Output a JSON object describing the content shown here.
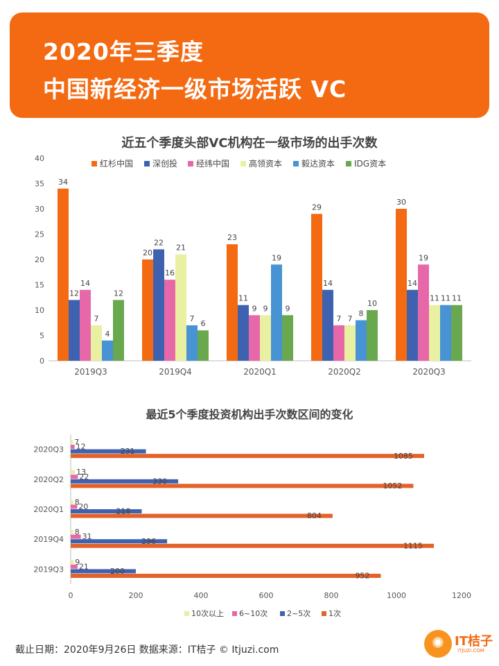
{
  "header": {
    "line1": "2020年三季度",
    "line2": "中国新经济一级市场活跃 VC"
  },
  "footer": {
    "text": "截止日期：2020年9月26日    数据来源：IT桔子 © Itjuzi.com"
  },
  "logo": {
    "text": "IT桔子",
    "sub": "ITJUZI.COM",
    "icon": "orange-slice-icon"
  },
  "chart_data": [
    {
      "type": "bar",
      "title": "近五个季度头部VC机构在一级市场的出手次数",
      "categories": [
        "2019Q3",
        "2019Q4",
        "2020Q1",
        "2020Q2",
        "2020Q3"
      ],
      "ylim": [
        0,
        40
      ],
      "yticks": [
        0,
        5,
        10,
        15,
        20,
        25,
        30,
        35,
        40
      ],
      "grid": false,
      "legend": "top",
      "series": [
        {
          "name": "红杉中国",
          "color": "#f36a12",
          "values": [
            34,
            20,
            23,
            29,
            30
          ]
        },
        {
          "name": "深创投",
          "color": "#3f62b0",
          "values": [
            12,
            22,
            11,
            14,
            14
          ]
        },
        {
          "name": "经纬中国",
          "color": "#e668a9",
          "values": [
            14,
            16,
            9,
            7,
            19
          ]
        },
        {
          "name": "高领资本",
          "color": "#eaf0a2",
          "values": [
            7,
            21,
            9,
            7,
            11
          ]
        },
        {
          "name": "毅达资本",
          "color": "#4793d3",
          "values": [
            4,
            7,
            19,
            8,
            11
          ]
        },
        {
          "name": "IDG资本",
          "color": "#6aa84f",
          "values": [
            12,
            6,
            9,
            10,
            11
          ]
        }
      ]
    },
    {
      "type": "bar",
      "orientation": "horizontal",
      "title": "最近5个季度投资机构出手次数区间的变化",
      "categories": [
        "2020Q3",
        "2020Q2",
        "2020Q1",
        "2019Q4",
        "2019Q3"
      ],
      "xlim": [
        0,
        1200
      ],
      "xticks": [
        0,
        200,
        400,
        600,
        800,
        1000,
        1200
      ],
      "grid": false,
      "legend": "bottom",
      "series": [
        {
          "name": "10次以上",
          "color": "#eaf0a2",
          "values": [
            7,
            13,
            8,
            8,
            9
          ]
        },
        {
          "name": "6~10次",
          "color": "#e668a9",
          "values": [
            12,
            22,
            20,
            31,
            21
          ]
        },
        {
          "name": "2~5次",
          "color": "#3f62b0",
          "values": [
            231,
            330,
            218,
            296,
            200
          ]
        },
        {
          "name": "1次",
          "color": "#e2622a",
          "values": [
            1085,
            1052,
            804,
            1115,
            952
          ]
        }
      ]
    }
  ]
}
